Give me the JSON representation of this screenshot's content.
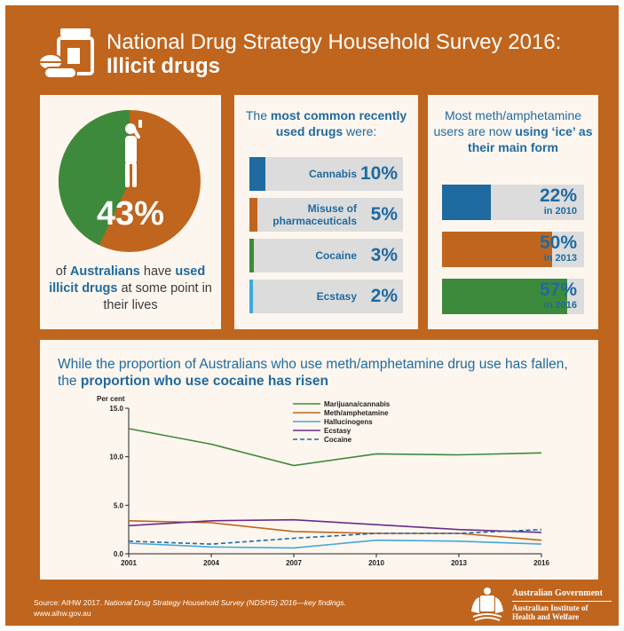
{
  "header": {
    "title_line1": "National Drug Strategy Household Survey 2016:",
    "title_line2": "Illicit drugs"
  },
  "panel_pie": {
    "value": 43,
    "value_label": "43%",
    "caption_pre": "of ",
    "caption_bold1": "Australians",
    "caption_mid": " have ",
    "caption_bold2": "used illicit drugs",
    "caption_post": " at some point in their lives"
  },
  "panel_common": {
    "head_pre": "The ",
    "head_bold": "most common recently used drugs",
    "head_post": " were:",
    "items": [
      {
        "label": "Cannabis",
        "value": 10,
        "value_label": "10%",
        "color": "#1f6aa0"
      },
      {
        "label": "Misuse of pharmaceuticals",
        "value": 5,
        "value_label": "5%",
        "color": "#c0651e"
      },
      {
        "label": "Cocaine",
        "value": 3,
        "value_label": "3%",
        "color": "#3e8a3c"
      },
      {
        "label": "Ecstasy",
        "value": 2,
        "value_label": "2%",
        "color": "#41a7dc"
      }
    ]
  },
  "panel_ice": {
    "head_pre": "Most meth/amphetamine users are now ",
    "head_bold": "using ‘ice’ as their main form",
    "items": [
      {
        "value": 22,
        "value_label": "22%",
        "year_label": "in 2010",
        "color": "#1f6aa0"
      },
      {
        "value": 50,
        "value_label": "50%",
        "year_label": "in 2013",
        "color": "#c0651e"
      },
      {
        "value": 57,
        "value_label": "57%",
        "year_label": "in 2016",
        "color": "#3e8a3c"
      }
    ]
  },
  "panel_trend": {
    "head_pre": "While the proportion of Australians who use meth/amphetamine drug use has fallen, the ",
    "head_bold": "proportion who use cocaine has risen"
  },
  "chart_data": {
    "type": "line",
    "title": "",
    "xlabel": "",
    "ylabel": "Per cent",
    "ylim": [
      0,
      15
    ],
    "yticks": [
      "0.0",
      "5.0",
      "10.0",
      "15.0"
    ],
    "x": [
      "2001",
      "2004",
      "2007",
      "2010",
      "2013",
      "2016"
    ],
    "grid": false,
    "legend_position": "top-right",
    "series": [
      {
        "name": "Marijuana/cannabis",
        "color": "#3e8a3c",
        "dashed": false,
        "values": [
          12.9,
          11.3,
          9.1,
          10.3,
          10.2,
          10.4
        ]
      },
      {
        "name": "Meth/amphetamine",
        "color": "#c0651e",
        "dashed": false,
        "values": [
          3.4,
          3.2,
          2.3,
          2.1,
          2.1,
          1.4
        ]
      },
      {
        "name": "Hallucinogens",
        "color": "#41a7dc",
        "dashed": false,
        "values": [
          1.1,
          0.7,
          0.6,
          1.4,
          1.3,
          1.0
        ]
      },
      {
        "name": "Ecstasy",
        "color": "#6a2c8a",
        "dashed": false,
        "values": [
          2.9,
          3.4,
          3.5,
          3.0,
          2.5,
          2.2
        ]
      },
      {
        "name": "Cocaine",
        "color": "#1f6aa0",
        "dashed": true,
        "values": [
          1.3,
          1.0,
          1.6,
          2.1,
          2.1,
          2.5
        ]
      }
    ]
  },
  "footer": {
    "source_pre": "Source: AIHW 2017. ",
    "source_italic": "National Drug Strategy Household Survey (NDSHS) 2016—key findings.",
    "url": "www.aihw.gov.au"
  },
  "logo": {
    "gov": "Australian Government",
    "institute_line1": "Australian Institute of",
    "institute_line2": "Health and Welfare"
  },
  "colors": {
    "background": "#c0651e",
    "panel": "#fdf6ee",
    "accent_blue": "#1f6aa0",
    "pie_green": "#3e8a3c",
    "pie_orange": "#c0651e"
  }
}
